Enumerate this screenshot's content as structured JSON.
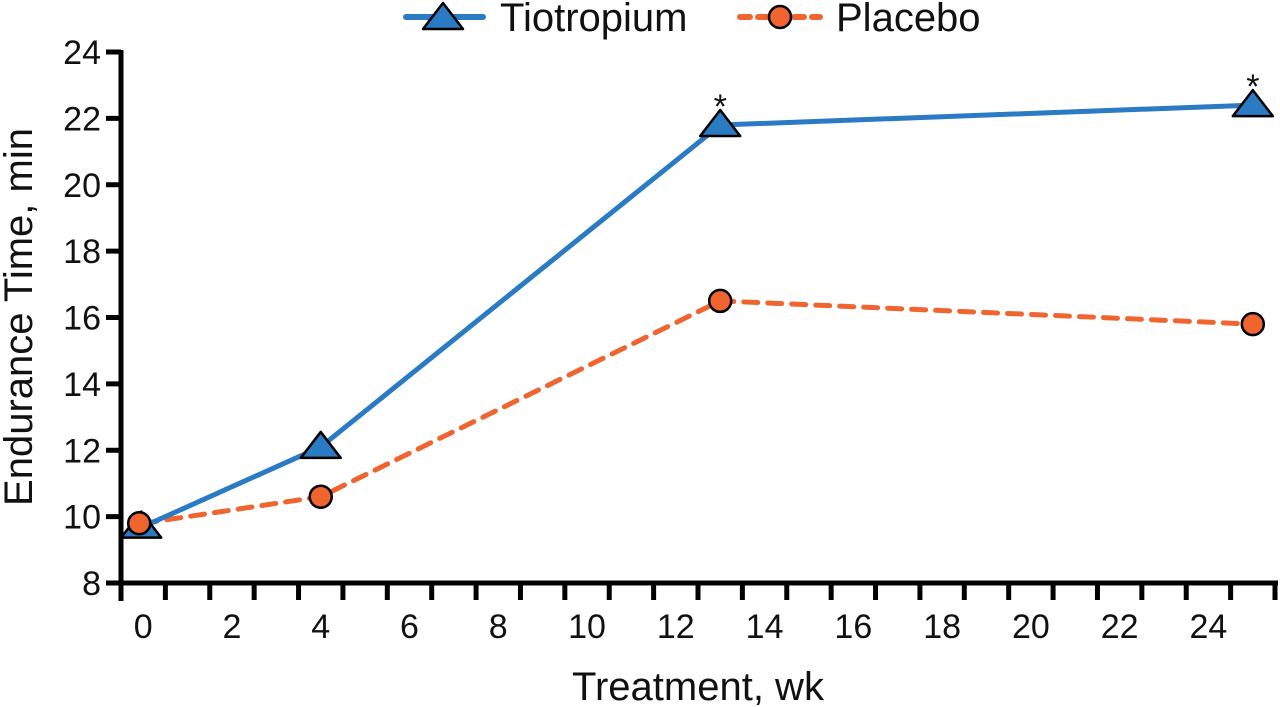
{
  "chart_data": {
    "type": "line",
    "title": "",
    "xlabel": "Treatment, wk",
    "ylabel": "Endurance Time, min",
    "xlim": [
      -0.5,
      25.5
    ],
    "ylim": [
      8,
      24
    ],
    "xticks": [
      0,
      2,
      4,
      6,
      8,
      10,
      12,
      14,
      16,
      18,
      20,
      22,
      24
    ],
    "yticks": [
      8,
      10,
      12,
      14,
      16,
      18,
      20,
      22,
      24
    ],
    "grid": false,
    "legend_position": "top-center",
    "series": [
      {
        "name": "Tiotropium",
        "color": "#2a7bc4",
        "line_style": "solid",
        "marker": "triangle",
        "x": [
          0,
          4,
          13,
          25
        ],
        "y": [
          9.7,
          12.1,
          21.8,
          22.4
        ]
      },
      {
        "name": "Placebo",
        "color": "#f06430",
        "line_style": "dashed",
        "marker": "circle",
        "x": [
          0,
          4,
          13,
          25
        ],
        "y": [
          9.8,
          10.6,
          16.5,
          15.8
        ]
      }
    ],
    "annotations": [
      {
        "text": "*",
        "x": 13,
        "series": "Tiotropium"
      },
      {
        "text": "*",
        "x": 25,
        "series": "Tiotropium"
      }
    ]
  }
}
